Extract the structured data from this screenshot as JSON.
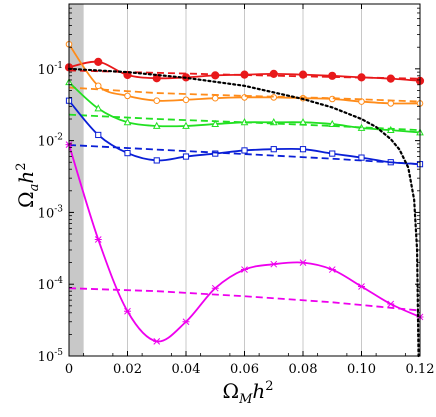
{
  "chart_data": {
    "type": "line",
    "xlabel": {
      "base": "Ω",
      "sub": "M",
      "rest": "h",
      "sup": "2"
    },
    "ylabel": {
      "base": "Ω",
      "sub": "a",
      "rest": "h",
      "sup": "2"
    },
    "xlim": [
      0,
      0.12
    ],
    "ylim": [
      1e-05,
      0.8
    ],
    "yscale": "log",
    "x_ticks": [
      0,
      0.02,
      0.04,
      0.06,
      0.08,
      0.1,
      0.12
    ],
    "x_tick_labels": [
      "0",
      "0.02",
      "0.04",
      "0.06",
      "0.08",
      "0.10",
      "0.12"
    ],
    "y_ticks": [
      1e-05,
      0.0001,
      0.001,
      0.01,
      0.1
    ],
    "y_tick_labels": [
      {
        "base": "10",
        "exp": "-5"
      },
      {
        "base": "10",
        "exp": "-4"
      },
      {
        "base": "10",
        "exp": "-3"
      },
      {
        "base": "10",
        "exp": "-2"
      },
      {
        "base": "10",
        "exp": "-1"
      }
    ],
    "vertical_gridlines_at": [
      0.02,
      0.04,
      0.06,
      0.08,
      0.1
    ],
    "shaded_band_x": [
      0,
      0.005
    ],
    "colors": {
      "red": "#e8191b",
      "orange": "#ff8c1a",
      "green": "#22e022",
      "blue": "#0a1fd6",
      "magenta": "#ee00ee",
      "black": "#000000",
      "band": "#c8c8c8",
      "grid": "#c8c8c8"
    },
    "series": [
      {
        "color_key": "red",
        "style": "solid",
        "marker": "filled-circle",
        "x": [
          0,
          0.01,
          0.02,
          0.03,
          0.04,
          0.05,
          0.06,
          0.07,
          0.08,
          0.09,
          0.1,
          0.11,
          0.12
        ],
        "y": [
          0.105,
          0.125,
          0.082,
          0.074,
          0.076,
          0.081,
          0.083,
          0.085,
          0.083,
          0.08,
          0.076,
          0.073,
          0.068
        ]
      },
      {
        "color_key": "red",
        "style": "dashed",
        "x": [
          0,
          0.03,
          0.06,
          0.09,
          0.12
        ],
        "y": [
          0.095,
          0.088,
          0.082,
          0.077,
          0.073
        ]
      },
      {
        "color_key": "orange",
        "style": "solid",
        "marker": "open-circle",
        "x": [
          0,
          0.01,
          0.02,
          0.03,
          0.04,
          0.05,
          0.06,
          0.07,
          0.08,
          0.09,
          0.1,
          0.11,
          0.12
        ],
        "y": [
          0.22,
          0.058,
          0.042,
          0.036,
          0.037,
          0.039,
          0.04,
          0.04,
          0.039,
          0.038,
          0.035,
          0.033,
          0.033
        ]
      },
      {
        "color_key": "orange",
        "style": "dashed",
        "x": [
          0,
          0.03,
          0.06,
          0.09,
          0.12
        ],
        "y": [
          0.055,
          0.046,
          0.042,
          0.039,
          0.035
        ]
      },
      {
        "color_key": "green",
        "style": "solid",
        "marker": "open-triangle",
        "x": [
          0,
          0.01,
          0.02,
          0.03,
          0.04,
          0.05,
          0.06,
          0.07,
          0.08,
          0.09,
          0.1,
          0.11,
          0.12
        ],
        "y": [
          0.065,
          0.028,
          0.018,
          0.016,
          0.016,
          0.017,
          0.018,
          0.018,
          0.018,
          0.017,
          0.015,
          0.014,
          0.013
        ]
      },
      {
        "color_key": "green",
        "style": "dashed",
        "x": [
          0,
          0.03,
          0.06,
          0.09,
          0.12
        ],
        "y": [
          0.023,
          0.02,
          0.018,
          0.016,
          0.014
        ]
      },
      {
        "color_key": "blue",
        "style": "solid",
        "marker": "open-square",
        "x": [
          0,
          0.01,
          0.02,
          0.03,
          0.04,
          0.05,
          0.06,
          0.07,
          0.08,
          0.09,
          0.1,
          0.11,
          0.12
        ],
        "y": [
          0.036,
          0.012,
          0.0067,
          0.0053,
          0.006,
          0.0066,
          0.0073,
          0.0076,
          0.0076,
          0.0066,
          0.0058,
          0.005,
          0.0047
        ]
      },
      {
        "color_key": "blue",
        "style": "dashed",
        "x": [
          0,
          0.03,
          0.06,
          0.09,
          0.12
        ],
        "y": [
          0.0087,
          0.0075,
          0.0065,
          0.0056,
          0.0047
        ]
      },
      {
        "color_key": "magenta",
        "style": "solid",
        "marker": "cross",
        "x": [
          0,
          0.01,
          0.02,
          0.03,
          0.04,
          0.05,
          0.06,
          0.07,
          0.08,
          0.09,
          0.1,
          0.11,
          0.12
        ],
        "y": [
          0.0088,
          0.00042,
          4.2e-05,
          1.6e-05,
          3e-05,
          8.8e-05,
          0.00016,
          0.00019,
          0.0002,
          0.00016,
          9.3e-05,
          5.3e-05,
          3.5e-05
        ]
      },
      {
        "color_key": "magenta",
        "style": "dashed",
        "x": [
          0,
          0.03,
          0.06,
          0.09,
          0.12
        ],
        "y": [
          8.8e-05,
          8e-05,
          6.8e-05,
          5.6e-05,
          4.3e-05
        ]
      },
      {
        "color_key": "black",
        "style": "dotted",
        "x": [
          0,
          0.02,
          0.04,
          0.06,
          0.08,
          0.09,
          0.1,
          0.105,
          0.11,
          0.113,
          0.116,
          0.118,
          0.119,
          0.1195
        ],
        "y": [
          0.1,
          0.09,
          0.075,
          0.058,
          0.038,
          0.029,
          0.02,
          0.0155,
          0.0105,
          0.0075,
          0.0042,
          0.0015,
          0.0003,
          1e-05
        ]
      }
    ]
  }
}
